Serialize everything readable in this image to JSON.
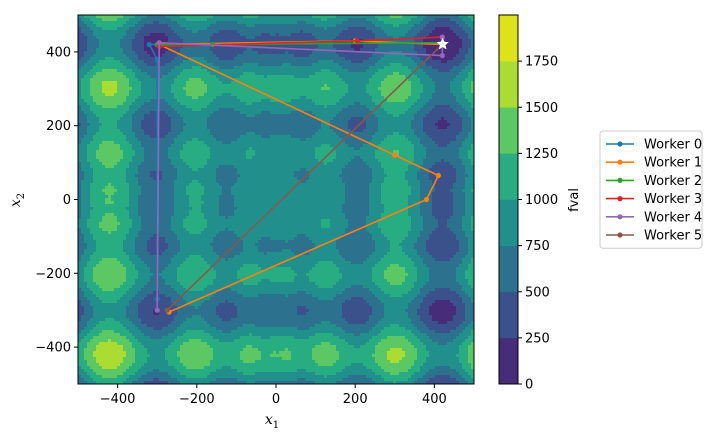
{
  "chart_data": {
    "type": "contour",
    "title": "",
    "xlabel": "x",
    "xlabel_sub": "1",
    "ylabel": "x",
    "ylabel_sub": "2",
    "xlim": [
      -500,
      500
    ],
    "ylim": [
      -500,
      500
    ],
    "xticks": [
      -400,
      -200,
      0,
      200,
      400
    ],
    "yticks": [
      -400,
      -200,
      0,
      200,
      400
    ],
    "colorbar": {
      "label": "fval",
      "levels": [
        0,
        250,
        500,
        750,
        1000,
        1250,
        1500,
        1750
      ],
      "colors": [
        "#472c7a",
        "#3b518b",
        "#2c718e",
        "#21908d",
        "#27ad81",
        "#5cc863",
        "#aadc32",
        "#dde318"
      ]
    },
    "optimum": {
      "x": 421,
      "y": 421,
      "marker": "star"
    },
    "legend_position": "right",
    "series": [
      {
        "name": "Worker 0",
        "color": "#1f77b4",
        "points": [
          [
            -300,
            -270
          ],
          [
            -300,
            380
          ],
          [
            -320,
            420
          ],
          [
            -300,
            420
          ]
        ]
      },
      {
        "name": "Worker 1",
        "color": "#ff7f0e",
        "points": [
          [
            -270,
            -305
          ],
          [
            380,
            0
          ],
          [
            410,
            65
          ],
          [
            300,
            120
          ],
          [
            -295,
            420
          ],
          [
            200,
            430
          ],
          [
            420,
            420
          ]
        ]
      },
      {
        "name": "Worker 2",
        "color": "#2ca02c",
        "points": [
          [
            -300,
            420
          ],
          [
            -160,
            420
          ],
          [
            420,
            425
          ]
        ]
      },
      {
        "name": "Worker 3",
        "color": "#d62728",
        "points": [
          [
            -295,
            415
          ],
          [
            205,
            430
          ],
          [
            420,
            440
          ]
        ]
      },
      {
        "name": "Worker 4",
        "color": "#9467bd",
        "points": [
          [
            -300,
            -300
          ],
          [
            -295,
            425
          ],
          [
            420,
            390
          ],
          [
            420,
            440
          ]
        ]
      },
      {
        "name": "Worker 5",
        "color": "#8c564b",
        "points": [
          [
            -275,
            -300
          ],
          [
            420,
            420
          ]
        ]
      }
    ]
  }
}
